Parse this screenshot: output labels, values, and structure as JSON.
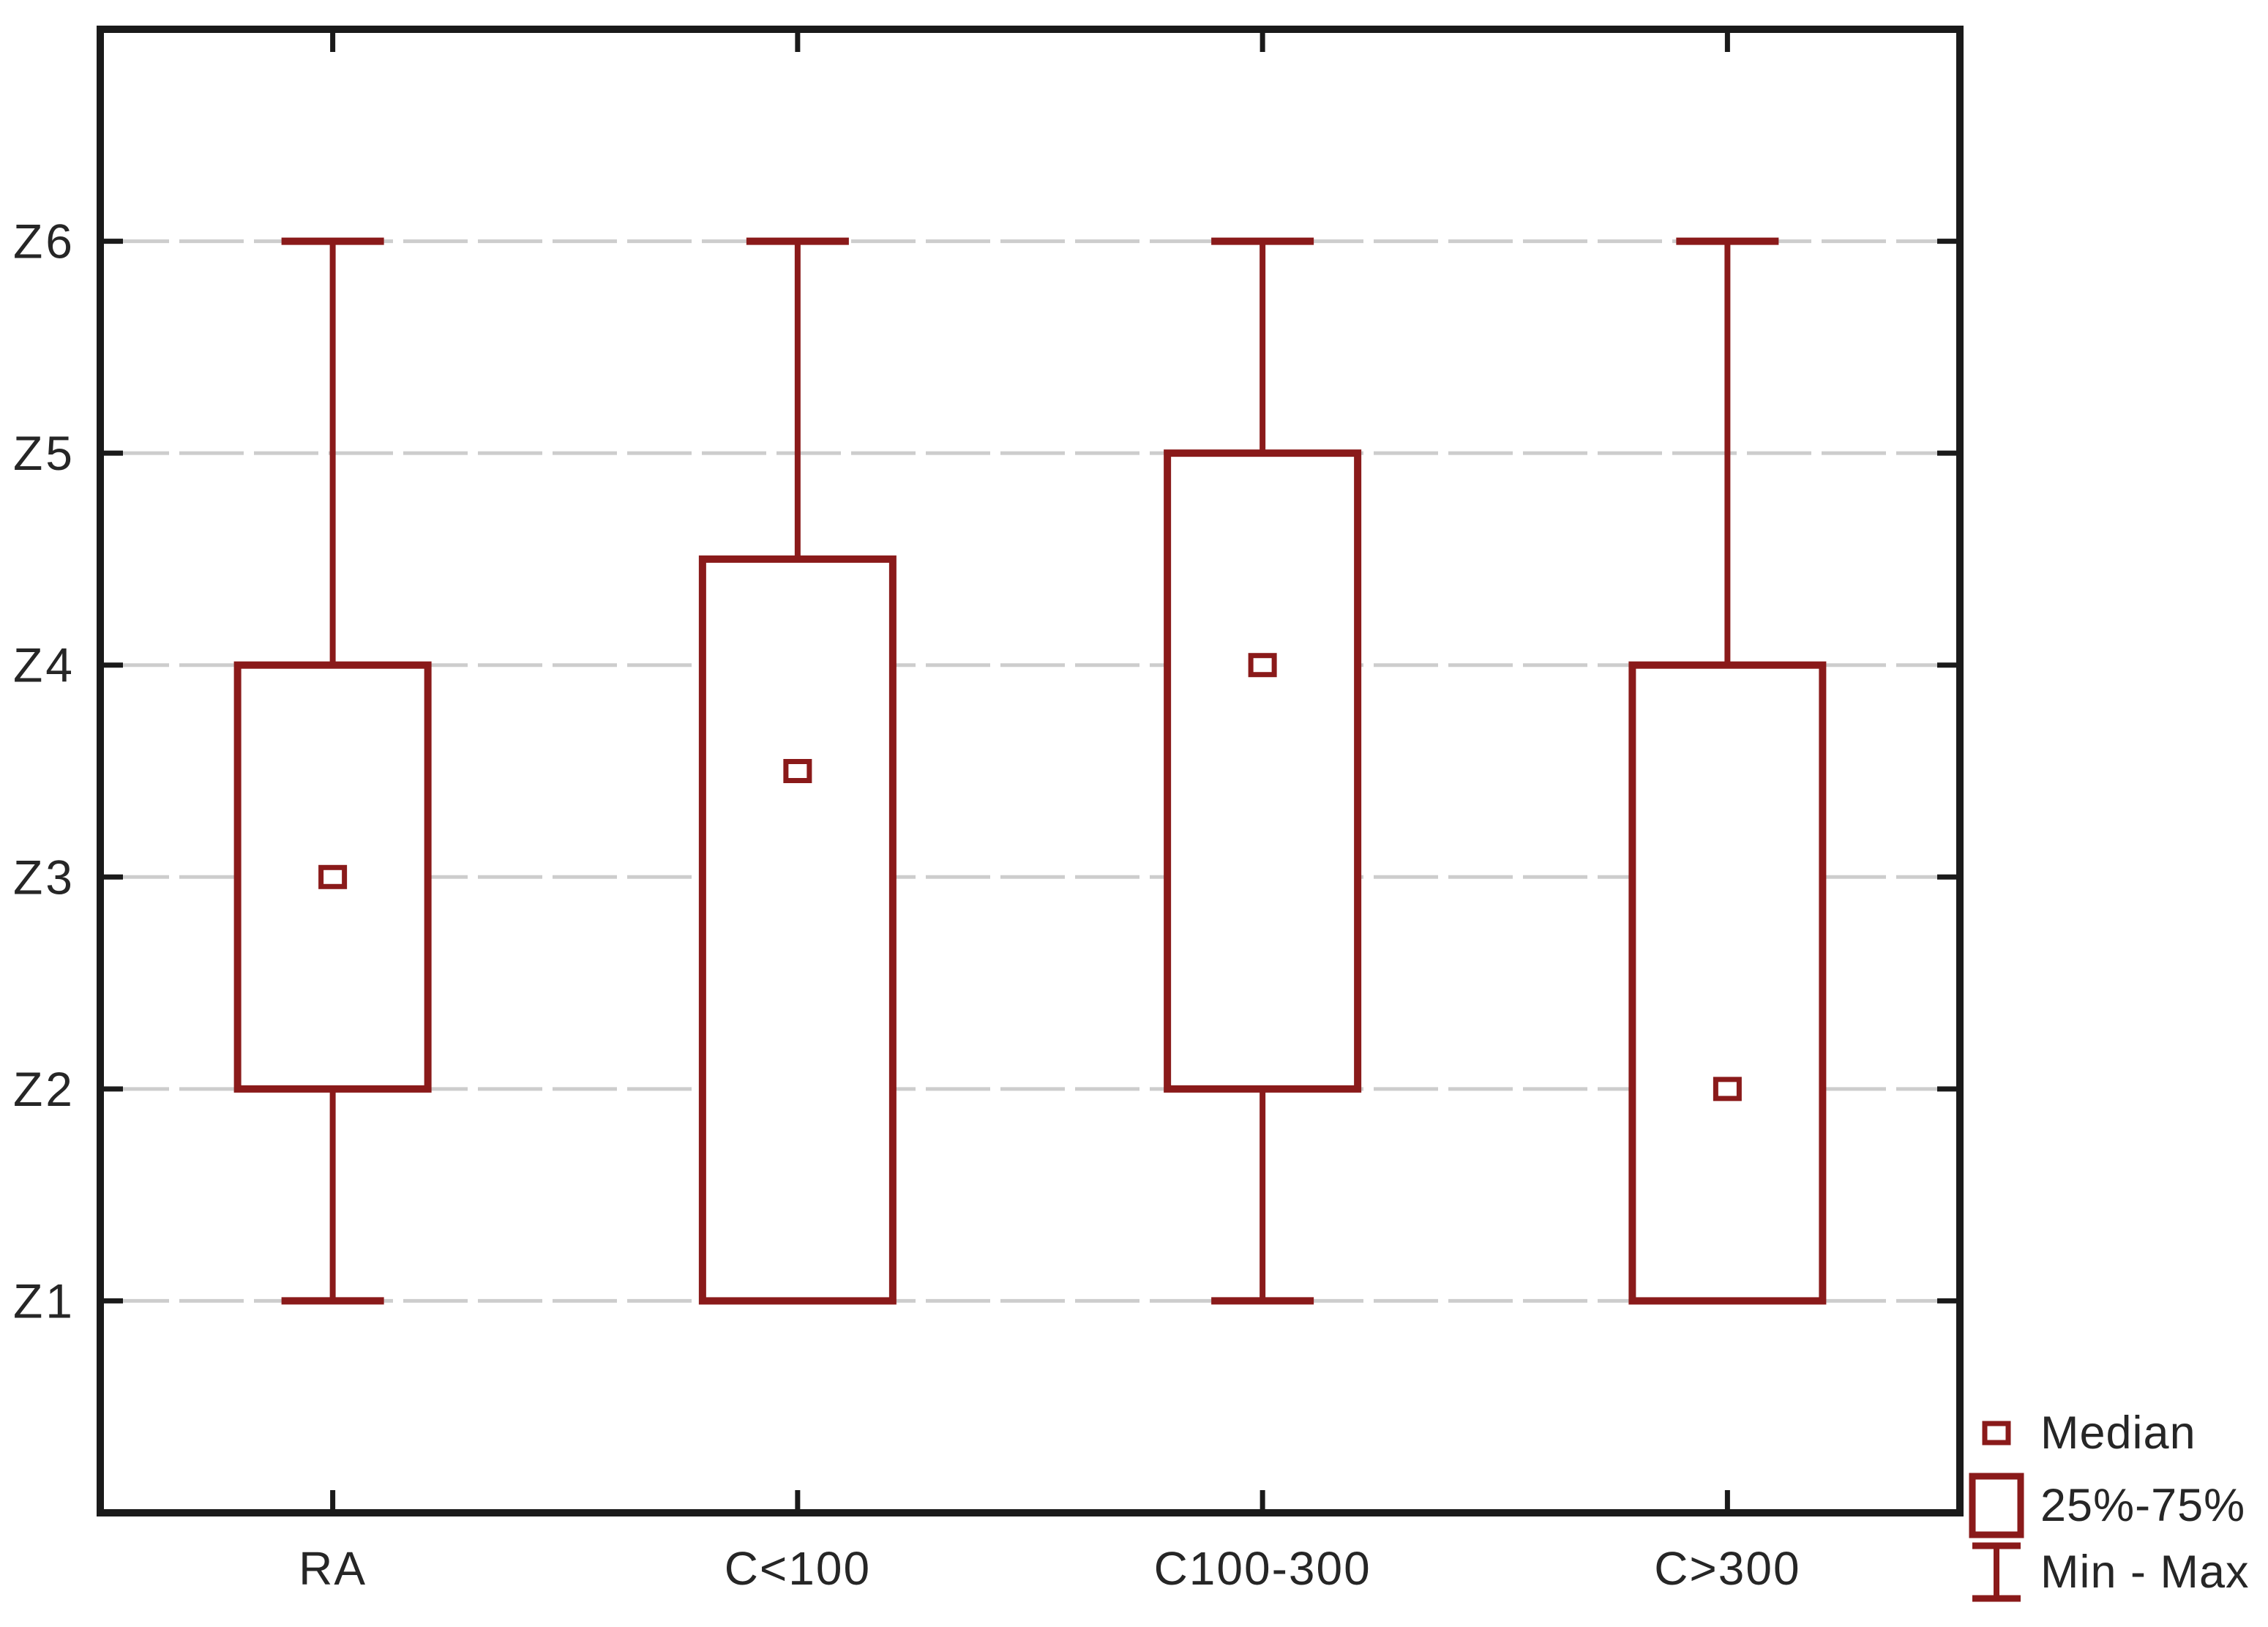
{
  "chart_data": {
    "type": "box",
    "title": "",
    "xlabel": "",
    "ylabel": "",
    "categories": [
      "RA",
      "C<100",
      "C100-300",
      "C>300"
    ],
    "y_ticks": [
      "Z1",
      "Z2",
      "Z3",
      "Z4",
      "Z5",
      "Z6"
    ],
    "y_tick_values": [
      1,
      2,
      3,
      4,
      5,
      6
    ],
    "ylim": [
      0,
      7
    ],
    "grid": "horizontal-dashed",
    "series": [
      {
        "name": "RA",
        "min": 1,
        "q1": 2,
        "median": 3,
        "q3": 4,
        "max": 6
      },
      {
        "name": "C<100",
        "min": 1,
        "q1": 1,
        "median": 3.5,
        "q3": 4.5,
        "max": 6
      },
      {
        "name": "C100-300",
        "min": 1,
        "q1": 2,
        "median": 4,
        "q3": 5,
        "max": 6
      },
      {
        "name": "C>300",
        "min": 1,
        "q1": 1,
        "median": 2,
        "q3": 4,
        "max": 6
      }
    ],
    "legend_position": "bottom-right",
    "legend": [
      {
        "symbol": "median-marker",
        "label": "Median"
      },
      {
        "symbol": "box",
        "label": "25%-75%"
      },
      {
        "symbol": "whisker",
        "label": "Min - Max"
      }
    ],
    "colors": {
      "box": "#8a1a1a",
      "grid": "#cdcdcd",
      "axis": "#1a1a1a",
      "text": "#262626",
      "background": "#ffffff"
    }
  }
}
